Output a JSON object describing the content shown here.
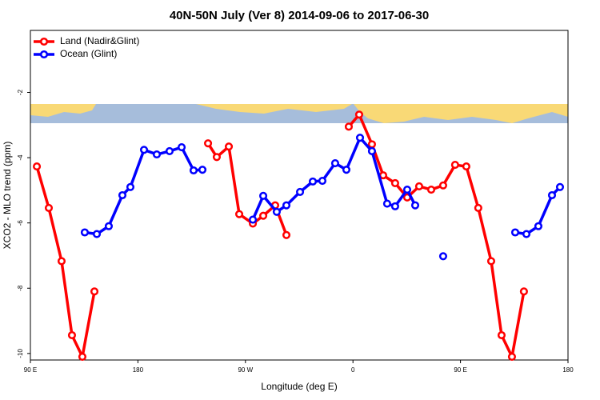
{
  "chart_data": {
    "type": "line",
    "title": "40N-50N July (Ver 8)   2014-09-06 to 2017-06-30",
    "x_label": "Longitude (deg E)",
    "y_label": "XCO2 - MLO trend (ppm)",
    "xlim": [
      90,
      540
    ],
    "xticks": [
      {
        "value": 90,
        "label": "90 E"
      },
      {
        "value": 180,
        "label": "180"
      },
      {
        "value": 270,
        "label": "90 W"
      },
      {
        "value": 360,
        "label": "0"
      },
      {
        "value": 450,
        "label": "90 E"
      },
      {
        "value": 540,
        "label": "180"
      }
    ],
    "ylim": [
      -10.2,
      -0.1
    ],
    "yticks": [
      -10,
      -8,
      -6,
      -4,
      -2
    ],
    "legend": "top-left",
    "series": [
      {
        "name": "Land (Nadir&Glint)",
        "color": "#ff0000",
        "x": [
          95.4,
          105.4,
          116.1,
          124.8,
          133.5,
          143.6,
          null,
          238.7,
          246.0,
          256.1,
          264.8,
          276.2,
          284.9,
          294.9,
          304.3,
          null,
          356.5,
          365.2,
          375.9,
          385.3,
          395.3,
          405.4,
          415.4,
          425.5,
          435.5,
          445.5,
          454.9,
          464.9,
          475.7,
          484.4,
          493.1,
          503.1
        ],
        "values": [
          -4.27,
          -5.54,
          -7.17,
          -9.44,
          -10.1,
          -8.1,
          null,
          -3.56,
          -3.98,
          -3.66,
          -5.73,
          -6.02,
          -5.78,
          -5.46,
          -6.37,
          null,
          -3.05,
          -2.68,
          -3.59,
          -4.54,
          -4.78,
          -5.22,
          -4.88,
          -4.98,
          -4.85,
          -4.22,
          -4.27,
          -5.54,
          -7.17,
          -9.44,
          -10.1,
          -8.1
        ]
      },
      {
        "name": "Ocean (Glint)",
        "color": "#0000ff",
        "x": [
          135.5,
          145.6,
          155.6,
          167.0,
          173.7,
          185.1,
          195.8,
          206.5,
          216.6,
          226.6,
          234.0,
          null,
          276.2,
          284.9,
          296.2,
          304.3,
          315.7,
          326.4,
          334.4,
          345.1,
          354.5,
          365.9,
          375.9,
          388.6,
          395.3,
          405.4,
          412.1,
          null,
          435.5,
          null,
          495.8,
          505.2,
          515.2,
          526.6,
          533.3
        ],
        "values": [
          -6.29,
          -6.34,
          -6.1,
          -5.15,
          -4.9,
          -3.76,
          -3.9,
          -3.8,
          -3.68,
          -4.39,
          -4.37,
          null,
          -5.9,
          -5.17,
          -5.66,
          -5.46,
          -5.05,
          -4.73,
          -4.71,
          -4.17,
          -4.37,
          -3.39,
          -3.8,
          -5.41,
          -5.49,
          -4.98,
          -5.46,
          null,
          -7.02,
          null,
          -6.29,
          -6.34,
          -6.1,
          -5.15,
          -4.9
        ]
      }
    ]
  }
}
